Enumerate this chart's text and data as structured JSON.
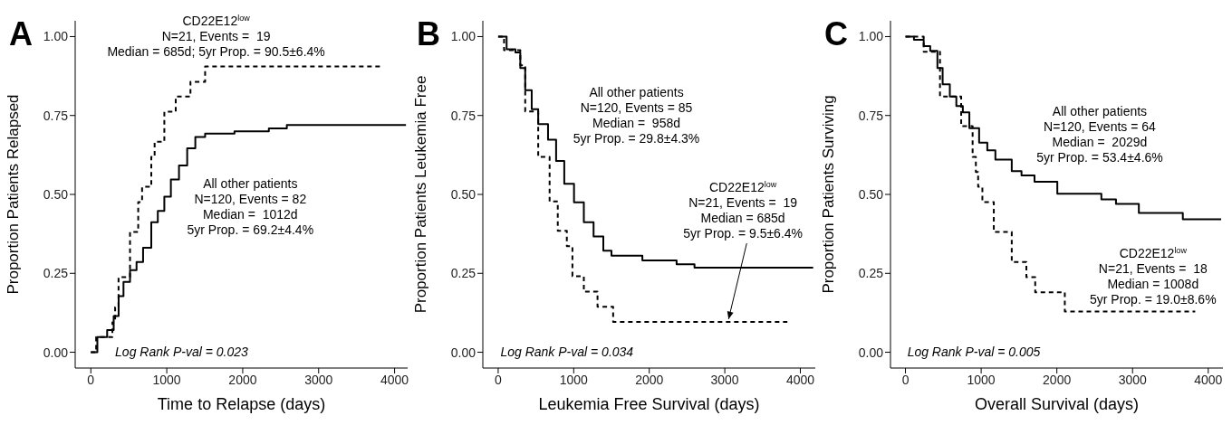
{
  "chart_data": [
    {
      "type": "step",
      "title": "A",
      "xlabel": "Time to Relapse (days)",
      "ylabel": "Proportion Patients Relapsed",
      "xlim": [
        -206,
        4172
      ],
      "ylim": [
        -0.05,
        1.05
      ],
      "xticks": [
        0,
        1000,
        2000,
        3000,
        4000
      ],
      "yticks": [
        {
          "value": 0,
          "label": "0.00"
        },
        {
          "value": 0.25,
          "label": "0.25"
        },
        {
          "value": 0.5,
          "label": "0.50"
        },
        {
          "value": 0.75,
          "label": "0.75"
        },
        {
          "value": 1,
          "label": "1.00"
        }
      ],
      "series": [
        {
          "color": "#000000",
          "line_style": "dashed",
          "x": [
            0,
            70,
            284,
            320,
            365,
            516,
            624,
            675,
            796,
            840,
            968,
            1118,
            1312,
            1505,
            3828
          ],
          "values": [
            0,
            0.048,
            0.095,
            0.143,
            0.238,
            0.381,
            0.476,
            0.524,
            0.619,
            0.667,
            0.762,
            0.81,
            0.857,
            0.905,
            0.905
          ]
        },
        {
          "color": "#000000",
          "line_style": "solid",
          "x": [
            0,
            86,
            215,
            301,
            366,
            430,
            516,
            602,
            688,
            796,
            882,
            968,
            1054,
            1161,
            1269,
            1376,
            1505,
            1892,
            2344,
            2581,
            4150
          ],
          "values": [
            0,
            0.048,
            0.07,
            0.115,
            0.178,
            0.223,
            0.26,
            0.286,
            0.331,
            0.412,
            0.448,
            0.493,
            0.547,
            0.592,
            0.646,
            0.682,
            0.693,
            0.7,
            0.709,
            0.72,
            0.72
          ]
        }
      ],
      "annotations": [
        "CD22E12$^{low}$\nN=21, Events =  19\nMedian = 685d; 5yr Prop. = 90.5±6.4%",
        "All other patients\nN=120, Events = 82\nMedian =  1012d\n5yr Prop. = 69.2±4.4%",
        "Log Rank P-val = 0.023"
      ]
    },
    {
      "type": "step",
      "title": "B",
      "xlabel": "Leukemia Free Survival (days)",
      "ylabel": "Proportion Patients Leukemia Free",
      "xlim": [
        -203,
        4198
      ],
      "ylim": [
        -0.05,
        1.05
      ],
      "xticks": [
        0,
        1000,
        2000,
        3000,
        4000
      ],
      "yticks": [
        {
          "value": 0,
          "label": "0.00"
        },
        {
          "value": 0.25,
          "label": "0.25"
        },
        {
          "value": 0.5,
          "label": "0.50"
        },
        {
          "value": 0.75,
          "label": "0.75"
        },
        {
          "value": 1,
          "label": "1.00"
        }
      ],
      "series": [
        {
          "color": "#000000",
          "line_style": "dashed",
          "x": [
            0,
            78,
            293,
            358,
            530,
            681,
            789,
            909,
            983,
            1134,
            1315,
            1522,
            3828
          ],
          "values": [
            1,
            0.957,
            0.909,
            0.763,
            0.619,
            0.478,
            0.385,
            0.336,
            0.241,
            0.192,
            0.144,
            0.096,
            0.096
          ]
        },
        {
          "color": "#000000",
          "line_style": "solid",
          "x": [
            0,
            112,
            228,
            293,
            358,
            444,
            530,
            660,
            767,
            875,
            1004,
            1134,
            1263,
            1392,
            1500,
            1909,
            2362,
            2599,
            4170
          ],
          "values": [
            1,
            0.96,
            0.95,
            0.9,
            0.83,
            0.77,
            0.723,
            0.673,
            0.606,
            0.534,
            0.475,
            0.412,
            0.367,
            0.322,
            0.306,
            0.291,
            0.279,
            0.268,
            0.268
          ]
        }
      ],
      "annotations": [
        "All other patients\nN=120, Events = 85\nMedian =  958d\n5yr Prop. = 29.8±4.3%",
        {
          "text": "CD22E12$^{low}$\nN=21, Events =  19\nMedian = 685d\n5yr Prop. = 9.5±6.4%",
          "x": 3050,
          "y": 0.096
        },
        "Log Rank P-val = 0.034"
      ]
    },
    {
      "type": "step",
      "title": "C",
      "xlabel": "Overall Survival (days)",
      "ylabel": "Proportion Patients Surviving",
      "xlim": [
        -198,
        4194
      ],
      "ylim": [
        -0.05,
        1.05
      ],
      "xticks": [
        0,
        1000,
        2000,
        3000,
        4000
      ],
      "yticks": [
        {
          "value": 0,
          "label": "0.00"
        },
        {
          "value": 0.25,
          "label": "0.25"
        },
        {
          "value": 0.5,
          "label": "0.50"
        },
        {
          "value": 0.75,
          "label": "0.75"
        },
        {
          "value": 1,
          "label": "1.00"
        }
      ],
      "series": [
        {
          "color": "#000000",
          "line_style": "dashed",
          "x": [
            0,
            241,
            456,
            736,
            887,
            930,
            960,
            1016,
            1167,
            1404,
            1597,
            1714,
            2105,
            3828
          ],
          "values": [
            1,
            0.952,
            0.81,
            0.716,
            0.619,
            0.571,
            0.524,
            0.476,
            0.381,
            0.286,
            0.238,
            0.19,
            0.129,
            0.129
          ]
        },
        {
          "color": "#000000",
          "line_style": "solid",
          "x": [
            0,
            112,
            241,
            327,
            422,
            491,
            586,
            672,
            758,
            844,
            973,
            1081,
            1188,
            1404,
            1533,
            1705,
            2006,
            2588,
            2781,
            3083,
            3664,
            4170
          ],
          "values": [
            1,
            0.99,
            0.97,
            0.955,
            0.9,
            0.849,
            0.81,
            0.78,
            0.76,
            0.71,
            0.664,
            0.64,
            0.61,
            0.574,
            0.56,
            0.54,
            0.502,
            0.484,
            0.47,
            0.441,
            0.421,
            0.421
          ]
        }
      ],
      "annotations": [
        "All other patients\nN=120, Events = 64\nMedian =  2029d\n5yr Prop. = 53.4±4.6%",
        "CD22E12$^{low}$\nN=21, Events =  18\nMedian = 1008d\n5yr Prop. = 19.0±8.6%",
        "Log Rank P-val = 0.005"
      ]
    }
  ]
}
